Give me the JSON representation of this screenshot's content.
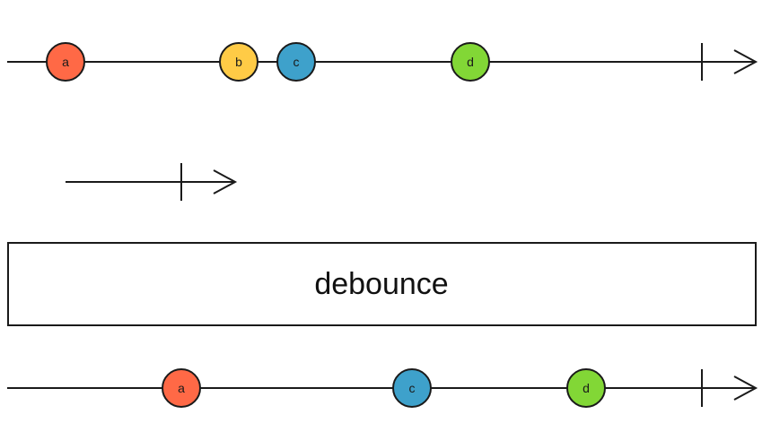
{
  "operator": {
    "name": "debounce"
  },
  "colors": {
    "a": "#ff6946",
    "b": "#ffcb46",
    "c": "#3ea1cb",
    "d": "#82d736",
    "stroke": "#1a1a1a"
  },
  "source_stream": {
    "events": [
      {
        "label": "a",
        "color": "#ff6946"
      },
      {
        "label": "b",
        "color": "#ffcb46"
      },
      {
        "label": "c",
        "color": "#3ea1cb"
      },
      {
        "label": "d",
        "color": "#82d736"
      }
    ],
    "completes": true
  },
  "duration_stream": {
    "completes": true
  },
  "result_stream": {
    "events": [
      {
        "label": "a",
        "color": "#ff6946"
      },
      {
        "label": "c",
        "color": "#3ea1cb"
      },
      {
        "label": "d",
        "color": "#82d736"
      }
    ],
    "completes": true
  }
}
